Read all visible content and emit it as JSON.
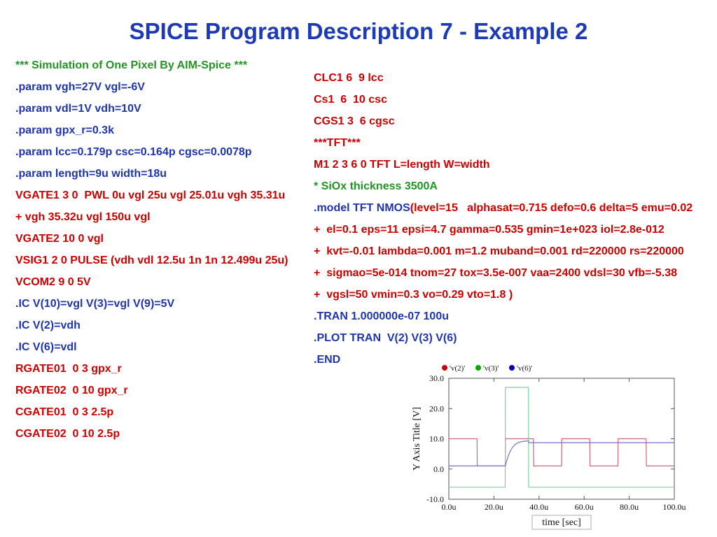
{
  "title": "SPICE Program Description 7 - Example 2",
  "colors": {
    "title_blue": "#1e3ab4",
    "blue": "#1e35ad",
    "green": "#229422",
    "red": "#cc0000"
  },
  "left_code": {
    "lines": [
      {
        "text": "*** Simulation of One Pixel By AIM-Spice ***",
        "color": "green"
      },
      {
        "text": ".param vgh=27V vgl=-6V",
        "color": "blue"
      },
      {
        "text": ".param vdl=1V vdh=10V",
        "color": "blue"
      },
      {
        "text": ".param gpx_r=0.3k",
        "color": "blue"
      },
      {
        "text": ".param lcc=0.179p csc=0.164p cgsc=0.0078p",
        "color": "blue"
      },
      {
        "text": ".param length=9u width=18u",
        "color": "blue"
      },
      {
        "text": "VGATE1 3 0  PWL 0u vgl 25u vgl 25.01u vgh 35.31u",
        "color": "red"
      },
      {
        "text": "+ vgh 35.32u vgl 150u vgl",
        "color": "red"
      },
      {
        "text": "VGATE2 10 0 vgl",
        "color": "red"
      },
      {
        "text": "VSIG1 2 0 PULSE (vdh vdl 12.5u 1n 1n 12.499u 25u)",
        "color": "red"
      },
      {
        "text": "VCOM2 9 0 5V",
        "color": "red"
      },
      {
        "text": ".IC V(10)=vgl V(3)=vgl V(9)=5V",
        "color": "blue"
      },
      {
        "text": ".IC V(2)=vdh",
        "color": "blue"
      },
      {
        "text": ".IC V(6)=vdl",
        "color": "blue"
      },
      {
        "text": "RGATE01  0 3 gpx_r",
        "color": "red"
      },
      {
        "text": "RGATE02  0 10 gpx_r",
        "color": "red"
      },
      {
        "text": "CGATE01  0 3 2.5p",
        "color": "red"
      },
      {
        "text": "CGATE02  0 10 2.5p",
        "color": "red"
      }
    ]
  },
  "right_code": {
    "lines": [
      {
        "text": "CLC1 6  9 lcc",
        "color": "red"
      },
      {
        "text": "Cs1  6  10 csc",
        "color": "red"
      },
      {
        "text": "CGS1 3  6 cgsc",
        "color": "red"
      },
      {
        "text": "***TFT***",
        "color": "red"
      },
      {
        "text": "M1 2 3 6 0 TFT L=length W=width",
        "color": "red"
      },
      {
        "text": "* SiOx thickness 3500A",
        "color": "green"
      },
      {
        "parts": [
          {
            "text": ".model TFT NMOS",
            "color": "blue"
          },
          {
            "text": "(level=15   alphasat=0.715 defo=0.6 delta=5 emu=0.02",
            "color": "red"
          }
        ]
      },
      {
        "text": "+  el=0.1 eps=11 epsi=4.7 gamma=0.535 gmin=1e+023 iol=2.8e-012",
        "color": "red"
      },
      {
        "text": "+  kvt=-0.01 lambda=0.001 m=1.2 muband=0.001 rd=220000 rs=220000",
        "color": "red"
      },
      {
        "text": "+  sigmao=5e-014 tnom=27 tox=3.5e-007 vaa=2400 vdsl=30 vfb=-5.38",
        "color": "red"
      },
      {
        "text": "+  vgsl=50 vmin=0.3 vo=0.29 vto=1.8 )",
        "color": "red"
      },
      {
        "text": ".TRAN 1.000000e-07 100u",
        "color": "blue"
      },
      {
        "text": ".PLOT TRAN  V(2) V(3) V(6)",
        "color": "blue"
      },
      {
        "text": ".END",
        "color": "blue"
      }
    ]
  },
  "chart_data": {
    "type": "line",
    "title": "",
    "xlabel": "time  [sec]",
    "ylabel": "Y Axis Title  [V]",
    "xlim": [
      0,
      100
    ],
    "ylim": [
      -10,
      30
    ],
    "grid": false,
    "legend_position": "top-left",
    "x_ticks": [
      {
        "v": 0,
        "label": "0.0u"
      },
      {
        "v": 20,
        "label": "20.0u"
      },
      {
        "v": 40,
        "label": "40.0u"
      },
      {
        "v": 60,
        "label": "60.0u"
      },
      {
        "v": 80,
        "label": "80.0u"
      },
      {
        "v": 100,
        "label": "100.0u"
      }
    ],
    "y_ticks": [
      {
        "v": -10,
        "label": "-10.0"
      },
      {
        "v": 0,
        "label": "0.0"
      },
      {
        "v": 10,
        "label": "10.0"
      },
      {
        "v": 20,
        "label": "20.0"
      },
      {
        "v": 30,
        "label": "30.0"
      }
    ],
    "legend": [
      {
        "name": "'v(2)'",
        "color": "#cc0000"
      },
      {
        "name": "'v(3)'",
        "color": "#00aa00"
      },
      {
        "name": "'v(6)'",
        "color": "#0000bb"
      }
    ],
    "series": [
      {
        "name": "v2",
        "color": "#c86a7a",
        "points": [
          [
            0,
            10
          ],
          [
            12.5,
            10
          ],
          [
            12.6,
            1
          ],
          [
            25,
            1
          ],
          [
            25.1,
            10
          ],
          [
            37.5,
            10
          ],
          [
            37.6,
            1
          ],
          [
            50,
            1
          ],
          [
            50.1,
            10
          ],
          [
            62.5,
            10
          ],
          [
            62.6,
            1
          ],
          [
            75,
            1
          ],
          [
            75.1,
            10
          ],
          [
            87.5,
            10
          ],
          [
            87.6,
            1
          ],
          [
            100,
            1
          ]
        ]
      },
      {
        "name": "v3",
        "color": "#7fcf9f",
        "points": [
          [
            0,
            -6
          ],
          [
            25,
            -6
          ],
          [
            25.1,
            27
          ],
          [
            35.3,
            27
          ],
          [
            35.4,
            -6
          ],
          [
            100,
            -6
          ]
        ]
      },
      {
        "name": "v6",
        "color": "#7a6fc0",
        "points": [
          [
            0,
            1
          ],
          [
            25,
            1
          ],
          [
            26,
            3.5
          ],
          [
            27,
            5.5
          ],
          [
            28,
            6.9
          ],
          [
            29,
            7.8
          ],
          [
            30,
            8.4
          ],
          [
            31,
            8.8
          ],
          [
            32.5,
            9.1
          ],
          [
            35.3,
            9.3
          ],
          [
            35.6,
            8.7
          ],
          [
            100,
            8.7
          ]
        ]
      }
    ]
  }
}
